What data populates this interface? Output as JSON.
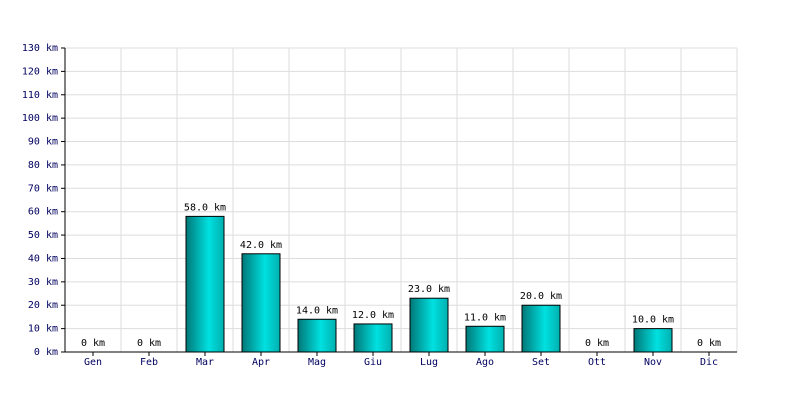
{
  "chart_data": {
    "type": "bar",
    "categories": [
      "Gen",
      "Feb",
      "Mar",
      "Apr",
      "Mag",
      "Giu",
      "Lug",
      "Ago",
      "Set",
      "Ott",
      "Nov",
      "Dic"
    ],
    "values": [
      0,
      0,
      58,
      42,
      14,
      12,
      23,
      11,
      20,
      0,
      10,
      0
    ],
    "value_labels": [
      "0 km",
      "0 km",
      "58.0 km",
      "42.0 km",
      "14.0 km",
      "12.0 km",
      "23.0 km",
      "11.0 km",
      "20.0 km",
      "0 km",
      "10.0 km",
      "0 km"
    ],
    "color": "#00e0e0",
    "ylim": [
      0,
      130
    ],
    "yticks": [
      {
        "value": 0,
        "label": "0 km"
      },
      {
        "value": 10,
        "label": "10 km"
      },
      {
        "value": 20,
        "label": "20 km"
      },
      {
        "value": 30,
        "label": "30 km"
      },
      {
        "value": 40,
        "label": "40 km"
      },
      {
        "value": 50,
        "label": "50 km"
      },
      {
        "value": 60,
        "label": "60 km"
      },
      {
        "value": 70,
        "label": "70 km"
      },
      {
        "value": 80,
        "label": "80 km"
      },
      {
        "value": 90,
        "label": "90 km"
      },
      {
        "value": 100,
        "label": "100 km"
      },
      {
        "value": 110,
        "label": "110 km"
      },
      {
        "value": 120,
        "label": "120 km"
      },
      {
        "value": 130,
        "label": "130 km"
      }
    ],
    "grid": true
  }
}
